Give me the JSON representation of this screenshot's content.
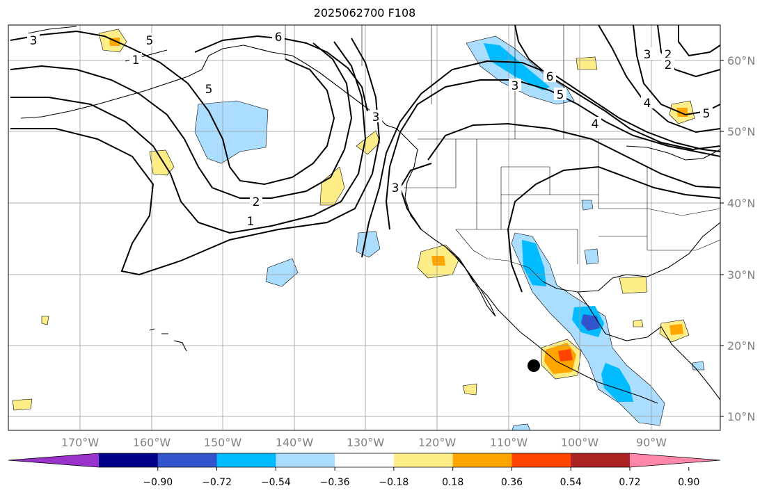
{
  "title": "2025062700 F108",
  "lat_labels": [
    "60°N",
    "50°N",
    "40°N",
    "30°N",
    "20°N",
    "10°N"
  ],
  "lon_labels": [
    "170°W",
    "160°W",
    "150°W",
    "140°W",
    "130°W",
    "120°W",
    "110°W",
    "100°W",
    "90°W"
  ],
  "colorbar": {
    "ticks": [
      "−0.90",
      "−0.72",
      "−0.54",
      "−0.36",
      "−0.18",
      "0.18",
      "0.36",
      "0.54",
      "0.72",
      "0.90"
    ],
    "colors": [
      "#9933cc",
      "#000088",
      "#3355cc",
      "#00bbff",
      "#aaddff",
      "#ffffff",
      "#ffee88",
      "#ffa500",
      "#ff4400",
      "#aa2222",
      "#ff88aa"
    ]
  },
  "contour_labels": [
    "3",
    "5",
    "6",
    "1",
    "2",
    "3",
    "5",
    "2",
    "1",
    "3",
    "6",
    "5",
    "4",
    "3",
    "2",
    "4",
    "5",
    "3"
  ],
  "colors": {
    "light_blue": "#aaddff",
    "cyan": "#00bbff",
    "blue": "#3355cc",
    "yellow": "#ffee88",
    "orange": "#ffa500",
    "red": "#ff4400",
    "grid": "#999999"
  }
}
